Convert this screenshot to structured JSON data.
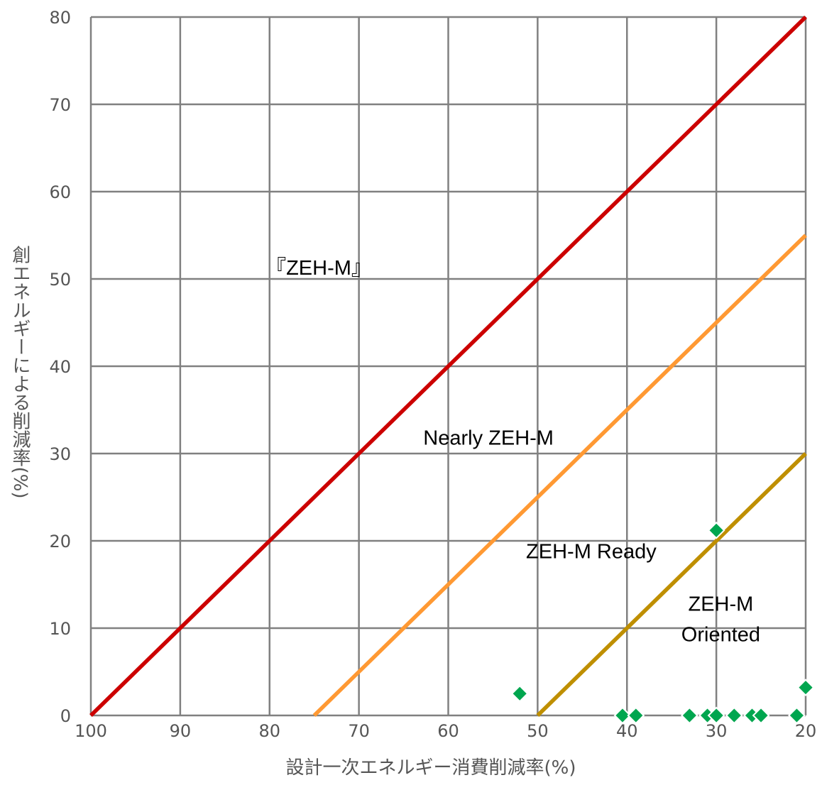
{
  "chart_data": {
    "type": "line",
    "xlabel": "設計一次エネルギー消費削減率(%)",
    "ylabel": "創エネルギーによる削減率(%)",
    "xlim": [
      100,
      20
    ],
    "ylim": [
      0,
      80
    ],
    "x_ticks": [
      100,
      90,
      80,
      70,
      60,
      50,
      40,
      30,
      20
    ],
    "y_ticks": [
      0,
      10,
      20,
      30,
      40,
      50,
      60,
      70,
      80
    ],
    "grid": true,
    "series": [
      {
        "color": "#cc0000",
        "x": [
          100,
          20
        ],
        "y": [
          0,
          80
        ]
      },
      {
        "color": "#ff9933",
        "x": [
          75,
          20
        ],
        "y": [
          0,
          55
        ]
      },
      {
        "color": "#bf8f00",
        "x": [
          50,
          20
        ],
        "y": [
          0,
          30
        ]
      }
    ],
    "points": {
      "color": "#00a64f",
      "x": [
        52,
        40.5,
        39,
        33,
        31,
        30,
        28,
        26,
        25,
        21,
        30,
        20
      ],
      "y": [
        2.5,
        0,
        0,
        0,
        0,
        0,
        0,
        0,
        0,
        0,
        21.2,
        3.2
      ]
    },
    "annotations": [
      {
        "text": "『ZEH-M』",
        "x": 74.5,
        "y": 50.5
      },
      {
        "text": "Nearly ZEH-M",
        "x": 55.5,
        "y": 31
      },
      {
        "text": "ZEH-M Ready",
        "x": 44,
        "y": 18
      },
      {
        "text": "ZEH-M",
        "x": 29.5,
        "y": 12
      },
      {
        "text": "Oriented",
        "x": 29.5,
        "y": 8.5
      }
    ]
  }
}
